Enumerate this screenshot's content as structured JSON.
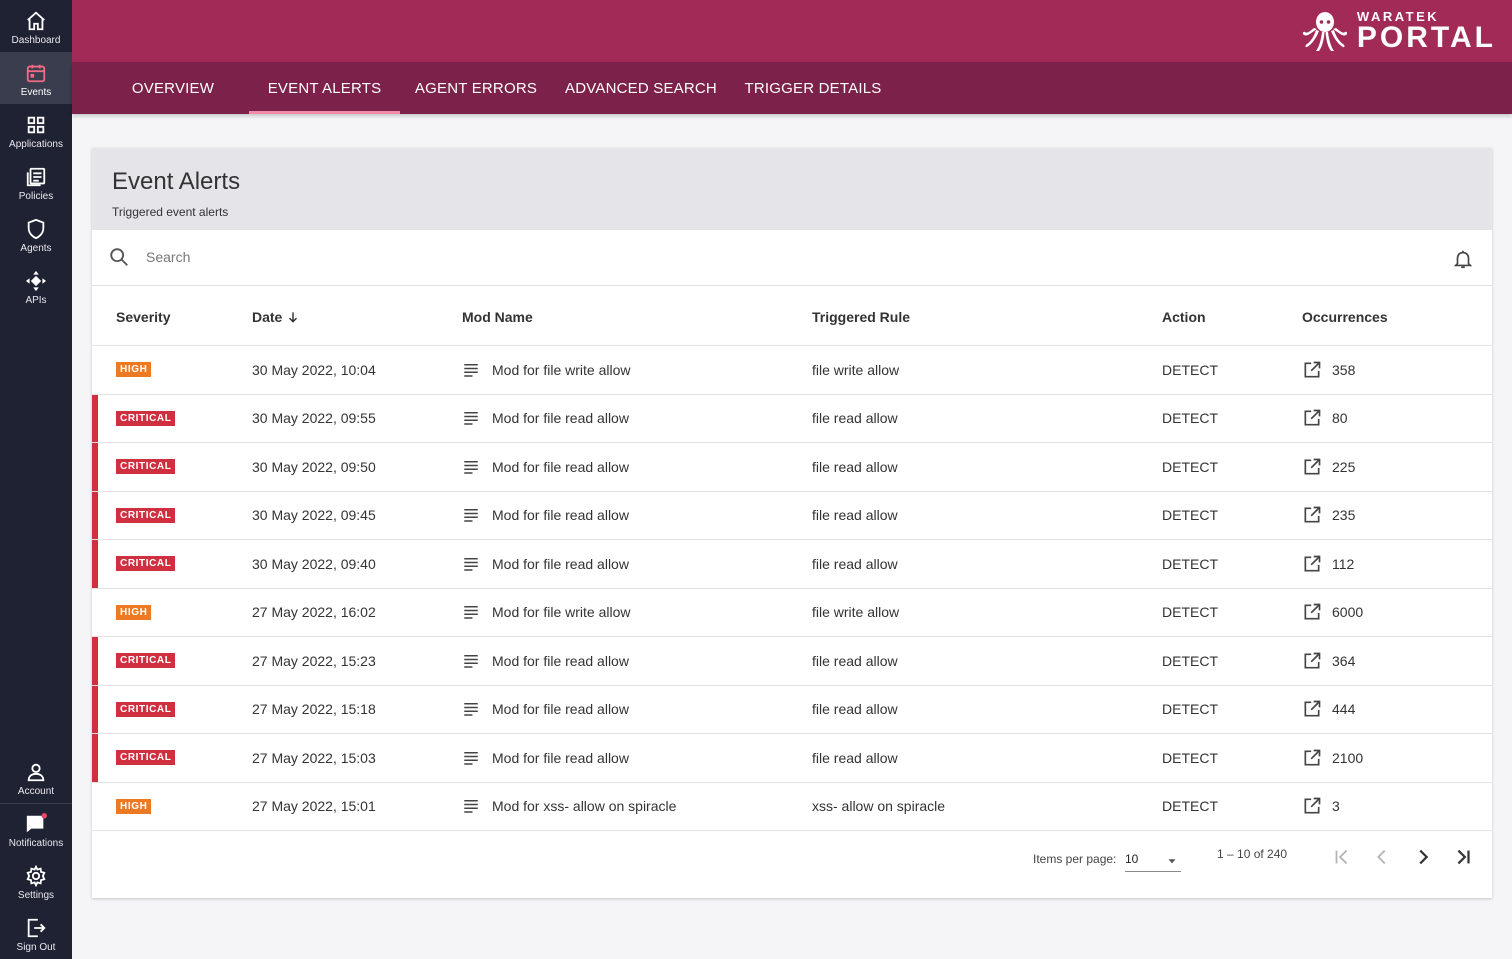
{
  "sidebar": {
    "items": [
      {
        "label": "Dashboard",
        "icon": "home-icon"
      },
      {
        "label": "Events",
        "icon": "calendar-icon"
      },
      {
        "label": "Applications",
        "icon": "grid-icon"
      },
      {
        "label": "Policies",
        "icon": "document-list-icon"
      },
      {
        "label": "Agents",
        "icon": "shield-icon"
      },
      {
        "label": "APIs",
        "icon": "api-icon"
      }
    ],
    "bottom": [
      {
        "label": "Account",
        "icon": "person-icon"
      },
      {
        "label": "Notifications",
        "icon": "chat-icon"
      },
      {
        "label": "Settings",
        "icon": "gear-icon"
      },
      {
        "label": "Sign Out",
        "icon": "logout-icon"
      }
    ]
  },
  "brand": {
    "top": "WARATEK",
    "bottom": "PORTAL"
  },
  "tabs": [
    "OVERVIEW",
    "EVENT ALERTS",
    "AGENT ERRORS",
    "ADVANCED SEARCH",
    "TRIGGER DETAILS"
  ],
  "card": {
    "title": "Event Alerts",
    "subtitle": "Triggered event alerts"
  },
  "search": {
    "placeholder": "Search"
  },
  "table": {
    "headers": [
      "Severity",
      "Date",
      "Mod Name",
      "Triggered Rule",
      "Action",
      "Occurrences"
    ],
    "rows": [
      {
        "severity": "HIGH",
        "date": "30 May 2022, 10:04",
        "mod": "Mod for file write allow",
        "rule": "file write allow",
        "action": "DETECT",
        "occ": "358"
      },
      {
        "severity": "CRITICAL",
        "date": "30 May 2022, 09:55",
        "mod": "Mod for file read allow",
        "rule": "file read allow",
        "action": "DETECT",
        "occ": "80"
      },
      {
        "severity": "CRITICAL",
        "date": "30 May 2022, 09:50",
        "mod": "Mod for file read allow",
        "rule": "file read allow",
        "action": "DETECT",
        "occ": "225"
      },
      {
        "severity": "CRITICAL",
        "date": "30 May 2022, 09:45",
        "mod": "Mod for file read allow",
        "rule": "file read allow",
        "action": "DETECT",
        "occ": "235"
      },
      {
        "severity": "CRITICAL",
        "date": "30 May 2022, 09:40",
        "mod": "Mod for file read allow",
        "rule": "file read allow",
        "action": "DETECT",
        "occ": "112"
      },
      {
        "severity": "HIGH",
        "date": "27 May 2022, 16:02",
        "mod": "Mod for file write allow",
        "rule": "file write allow",
        "action": "DETECT",
        "occ": "6000"
      },
      {
        "severity": "CRITICAL",
        "date": "27 May 2022, 15:23",
        "mod": "Mod for file read allow",
        "rule": "file read allow",
        "action": "DETECT",
        "occ": "364"
      },
      {
        "severity": "CRITICAL",
        "date": "27 May 2022, 15:18",
        "mod": "Mod for file read allow",
        "rule": "file read allow",
        "action": "DETECT",
        "occ": "444"
      },
      {
        "severity": "CRITICAL",
        "date": "27 May 2022, 15:03",
        "mod": "Mod for file read allow",
        "rule": "file read allow",
        "action": "DETECT",
        "occ": "2100"
      },
      {
        "severity": "HIGH",
        "date": "27 May 2022, 15:01",
        "mod": "Mod for xss- allow on spiracle",
        "rule": "xss- allow on spiracle",
        "action": "DETECT",
        "occ": "3"
      }
    ]
  },
  "pager": {
    "items_label": "Items per page:",
    "items_value": "10",
    "range": "1 – 10 of 240"
  },
  "colors": {
    "header": "#a12a56",
    "subnav": "#7c2149",
    "sidebar": "#1f2232",
    "critical": "#cf2f3e",
    "high": "#ed7a22"
  }
}
